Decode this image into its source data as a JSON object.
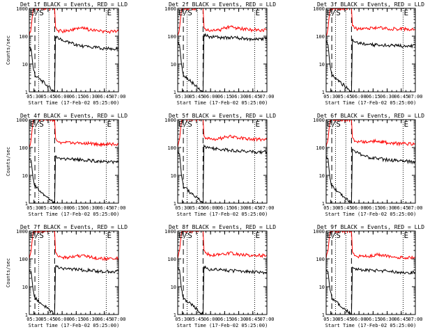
{
  "chart_data": [
    {
      "type": "line",
      "title": "Det 1f BLACK = Events, RED = LLD",
      "xlabel": "Start Time (17-Feb-02 05:25:00)",
      "ylabel": "Counts/sec",
      "yscale": "log",
      "ylim": [
        1,
        1000
      ],
      "xlim": [
        "05:25",
        "07:00"
      ],
      "x_ticks": [
        "05:30",
        "05:45",
        "06:00",
        "06:15",
        "06:30",
        "06:45",
        "07:00"
      ],
      "y_ticks": [
        "1",
        "10",
        "100",
        "1000"
      ],
      "markers": [
        "E/S",
        "E"
      ],
      "dashed_lines": [
        "05:31",
        "05:52"
      ],
      "dotted_lines": [
        "05:35",
        "05:46",
        "06:47"
      ],
      "series": [
        {
          "name": "LLD",
          "color": "#ff0000",
          "x": [
            "05:25",
            "05:27",
            "05:29",
            "05:30",
            "05:31",
            "05:52",
            "05:53",
            "05:55",
            "06:00",
            "06:10",
            "06:20",
            "06:30",
            "06:40",
            "06:50",
            "07:00"
          ],
          "y": [
            100,
            200,
            900,
            1000,
            1000,
            1000,
            200,
            160,
            150,
            160,
            200,
            170,
            150,
            145,
            150
          ]
        },
        {
          "name": "Events",
          "color": "#000000",
          "x": [
            "05:25",
            "05:27",
            "05:29",
            "05:31",
            "05:52",
            "05:53",
            "05:56",
            "06:00",
            "06:10",
            "06:20",
            "06:30",
            "06:40",
            "06:50",
            "07:00"
          ],
          "y": [
            40,
            35,
            8,
            4,
            1,
            100,
            80,
            75,
            55,
            45,
            40,
            38,
            35,
            35
          ]
        }
      ]
    },
    {
      "type": "line",
      "title": "Det 2f BLACK = Events, RED = LLD",
      "xlabel": "Start Time (17-Feb-02 05:25:00)",
      "ylabel": "",
      "yscale": "log",
      "ylim": [
        1,
        1000
      ],
      "xlim": [
        "05:25",
        "07:00"
      ],
      "x_ticks": [
        "05:30",
        "05:45",
        "06:00",
        "06:15",
        "06:30",
        "06:45",
        "07:00"
      ],
      "y_ticks": [
        "1",
        "10",
        "100",
        "1000"
      ],
      "markers": [
        "E/S",
        "E"
      ],
      "dashed_lines": [
        "05:31",
        "05:52"
      ],
      "dotted_lines": [
        "05:35",
        "05:46",
        "06:47"
      ],
      "series": [
        {
          "name": "LLD",
          "color": "#ff0000",
          "x": [
            "05:25",
            "05:27",
            "05:29",
            "05:30",
            "05:31",
            "05:52",
            "05:53",
            "05:56",
            "06:00",
            "06:10",
            "06:20",
            "06:30",
            "06:40",
            "06:50",
            "07:00"
          ],
          "y": [
            100,
            200,
            900,
            1000,
            1000,
            1000,
            220,
            170,
            160,
            170,
            220,
            190,
            170,
            165,
            170
          ]
        },
        {
          "name": "Events",
          "color": "#000000",
          "x": [
            "05:25",
            "05:27",
            "05:29",
            "05:31",
            "05:52",
            "05:53",
            "05:56",
            "06:00",
            "06:10",
            "06:20",
            "06:30",
            "06:40",
            "06:50",
            "07:00"
          ],
          "y": [
            60,
            50,
            10,
            4,
            1,
            120,
            100,
            95,
            90,
            90,
            85,
            80,
            80,
            80
          ]
        }
      ]
    },
    {
      "type": "line",
      "title": "Det 3f BLACK = Events, RED = LLD",
      "xlabel": "Start Time (17-Feb-02 05:25:00)",
      "ylabel": "",
      "yscale": "log",
      "ylim": [
        1,
        1000
      ],
      "xlim": [
        "05:25",
        "07:00"
      ],
      "x_ticks": [
        "05:30",
        "05:45",
        "06:00",
        "06:15",
        "06:30",
        "06:45",
        "07:00"
      ],
      "y_ticks": [
        "1",
        "10",
        "100",
        "1000"
      ],
      "markers": [
        "E/S",
        "E"
      ],
      "dashed_lines": [
        "05:31",
        "05:52"
      ],
      "dotted_lines": [
        "05:35",
        "05:46",
        "06:47"
      ],
      "series": [
        {
          "name": "LLD",
          "color": "#ff0000",
          "x": [
            "05:25",
            "05:27",
            "05:29",
            "05:30",
            "05:31",
            "05:52",
            "05:53",
            "05:56",
            "06:00",
            "06:10",
            "06:20",
            "06:30",
            "06:40",
            "06:50",
            "07:00"
          ],
          "y": [
            100,
            200,
            900,
            1000,
            1000,
            1000,
            240,
            190,
            180,
            190,
            200,
            190,
            180,
            180,
            180
          ]
        },
        {
          "name": "Events",
          "color": "#000000",
          "x": [
            "05:25",
            "05:27",
            "05:29",
            "05:31",
            "05:52",
            "05:53",
            "05:56",
            "06:00",
            "06:10",
            "06:20",
            "06:30",
            "06:40",
            "06:50",
            "07:00"
          ],
          "y": [
            60,
            50,
            10,
            4,
            1,
            80,
            60,
            55,
            50,
            48,
            46,
            45,
            44,
            45
          ]
        }
      ]
    },
    {
      "type": "line",
      "title": "Det 4f BLACK = Events, RED = LLD",
      "xlabel": "Start Time (17-Feb-02 05:25:00)",
      "ylabel": "Counts/sec",
      "yscale": "log",
      "ylim": [
        1,
        1000
      ],
      "xlim": [
        "05:25",
        "07:00"
      ],
      "x_ticks": [
        "05:30",
        "05:45",
        "06:00",
        "06:15",
        "06:30",
        "06:45",
        "07:00"
      ],
      "y_ticks": [
        "1",
        "10",
        "100",
        "1000"
      ],
      "markers": [
        "E/S",
        "E"
      ],
      "dashed_lines": [
        "05:31",
        "05:52"
      ],
      "dotted_lines": [
        "05:35",
        "05:46",
        "06:47"
      ],
      "series": [
        {
          "name": "LLD",
          "color": "#ff0000",
          "x": [
            "05:25",
            "05:27",
            "05:29",
            "05:30",
            "05:31",
            "05:52",
            "05:53",
            "05:56",
            "06:00",
            "06:10",
            "06:20",
            "06:30",
            "06:40",
            "06:50",
            "07:00"
          ],
          "y": [
            100,
            200,
            900,
            1000,
            1000,
            1000,
            220,
            160,
            150,
            145,
            150,
            140,
            130,
            130,
            130
          ]
        },
        {
          "name": "Events",
          "color": "#000000",
          "x": [
            "05:25",
            "05:27",
            "05:29",
            "05:31",
            "05:52",
            "05:53",
            "05:56",
            "06:00",
            "06:10",
            "06:20",
            "06:30",
            "06:40",
            "06:50",
            "07:00"
          ],
          "y": [
            40,
            35,
            8,
            4,
            1,
            50,
            42,
            40,
            38,
            36,
            34,
            32,
            30,
            30
          ]
        }
      ]
    },
    {
      "type": "line",
      "title": "Det 5f BLACK = Events, RED = LLD",
      "xlabel": "Start Time (17-Feb-02 05:25:00)",
      "ylabel": "",
      "yscale": "log",
      "ylim": [
        1,
        1000
      ],
      "xlim": [
        "05:25",
        "07:00"
      ],
      "x_ticks": [
        "05:30",
        "05:45",
        "06:00",
        "06:15",
        "06:30",
        "06:45",
        "07:00"
      ],
      "y_ticks": [
        "1",
        "10",
        "100",
        "1000"
      ],
      "markers": [
        "E/S",
        "E"
      ],
      "dashed_lines": [
        "05:31",
        "05:52"
      ],
      "dotted_lines": [
        "05:35",
        "05:46",
        "06:47"
      ],
      "series": [
        {
          "name": "LLD",
          "color": "#ff0000",
          "x": [
            "05:25",
            "05:27",
            "05:29",
            "05:30",
            "05:31",
            "05:52",
            "05:53",
            "05:56",
            "06:00",
            "06:10",
            "06:20",
            "06:30",
            "06:40",
            "06:50",
            "07:00"
          ],
          "y": [
            100,
            200,
            900,
            1000,
            1000,
            1000,
            260,
            210,
            200,
            210,
            250,
            220,
            200,
            195,
            200
          ]
        },
        {
          "name": "Events",
          "color": "#000000",
          "x": [
            "05:25",
            "05:27",
            "05:29",
            "05:31",
            "05:52",
            "05:53",
            "05:56",
            "06:00",
            "06:10",
            "06:20",
            "06:30",
            "06:40",
            "06:50",
            "07:00"
          ],
          "y": [
            80,
            60,
            10,
            4,
            1,
            120,
            100,
            95,
            85,
            80,
            75,
            70,
            68,
            70
          ]
        }
      ]
    },
    {
      "type": "line",
      "title": "Det 6f BLACK = Events, RED = LLD",
      "xlabel": "Start Time (17-Feb-02 05:25:00)",
      "ylabel": "",
      "yscale": "log",
      "ylim": [
        1,
        1000
      ],
      "xlim": [
        "05:25",
        "07:00"
      ],
      "x_ticks": [
        "05:30",
        "05:45",
        "06:00",
        "06:15",
        "06:30",
        "06:45",
        "07:00"
      ],
      "y_ticks": [
        "1",
        "10",
        "100",
        "1000"
      ],
      "markers": [
        "E/S",
        "E"
      ],
      "dashed_lines": [
        "05:31",
        "05:52"
      ],
      "dotted_lines": [
        "05:35",
        "05:46",
        "06:47"
      ],
      "series": [
        {
          "name": "LLD",
          "color": "#ff0000",
          "x": [
            "05:25",
            "05:27",
            "05:29",
            "05:30",
            "05:31",
            "05:52",
            "05:53",
            "05:56",
            "06:00",
            "06:10",
            "06:20",
            "06:30",
            "06:40",
            "06:50",
            "07:00"
          ],
          "y": [
            100,
            200,
            900,
            1000,
            1000,
            1000,
            230,
            170,
            160,
            160,
            170,
            150,
            140,
            135,
            130
          ]
        },
        {
          "name": "Events",
          "color": "#000000",
          "x": [
            "05:25",
            "05:27",
            "05:29",
            "05:31",
            "05:52",
            "05:53",
            "05:56",
            "06:00",
            "06:10",
            "06:20",
            "06:30",
            "06:40",
            "06:50",
            "07:00"
          ],
          "y": [
            50,
            40,
            8,
            4,
            1,
            90,
            70,
            60,
            45,
            40,
            36,
            34,
            32,
            30
          ]
        }
      ]
    },
    {
      "type": "line",
      "title": "Det 7f BLACK = Events, RED = LLD",
      "xlabel": "Start Time (17-Feb-02 05:25:00)",
      "ylabel": "Counts/sec",
      "yscale": "log",
      "ylim": [
        1,
        1000
      ],
      "xlim": [
        "05:25",
        "07:00"
      ],
      "x_ticks": [
        "05:30",
        "05:45",
        "06:00",
        "06:15",
        "06:30",
        "06:45",
        "07:00"
      ],
      "y_ticks": [
        "1",
        "10",
        "100",
        "1000"
      ],
      "markers": [
        "E/S",
        "E"
      ],
      "dashed_lines": [
        "05:31",
        "05:52"
      ],
      "dotted_lines": [
        "05:35",
        "05:46",
        "06:47"
      ],
      "series": [
        {
          "name": "LLD",
          "color": "#ff0000",
          "x": [
            "05:25",
            "05:27",
            "05:29",
            "05:30",
            "05:31",
            "05:52",
            "05:53",
            "05:56",
            "06:00",
            "06:10",
            "06:20",
            "06:30",
            "06:40",
            "06:50",
            "07:00"
          ],
          "y": [
            100,
            200,
            900,
            1000,
            1000,
            1000,
            170,
            120,
            110,
            115,
            130,
            115,
            105,
            100,
            105
          ]
        },
        {
          "name": "Events",
          "color": "#000000",
          "x": [
            "05:25",
            "05:27",
            "05:29",
            "05:31",
            "05:52",
            "05:53",
            "05:56",
            "06:00",
            "06:10",
            "06:20",
            "06:30",
            "06:40",
            "06:50",
            "07:00"
          ],
          "y": [
            40,
            35,
            8,
            4,
            1,
            55,
            48,
            45,
            42,
            40,
            38,
            36,
            35,
            35
          ]
        }
      ]
    },
    {
      "type": "line",
      "title": "Det 8f BLACK = Events, RED = LLD",
      "xlabel": "Start Time (17-Feb-02 05:25:00)",
      "ylabel": "",
      "yscale": "log",
      "ylim": [
        1,
        1000
      ],
      "xlim": [
        "05:25",
        "07:00"
      ],
      "x_ticks": [
        "05:30",
        "05:45",
        "06:00",
        "06:15",
        "06:30",
        "06:45",
        "07:00"
      ],
      "y_ticks": [
        "1",
        "10",
        "100",
        "1000"
      ],
      "markers": [
        "E/S",
        "E"
      ],
      "dashed_lines": [
        "05:31",
        "05:52"
      ],
      "dotted_lines": [
        "05:35",
        "05:46",
        "06:47"
      ],
      "series": [
        {
          "name": "LLD",
          "color": "#ff0000",
          "x": [
            "05:25",
            "05:27",
            "05:29",
            "05:30",
            "05:31",
            "05:52",
            "05:53",
            "05:56",
            "06:00",
            "06:10",
            "06:20",
            "06:30",
            "06:40",
            "06:50",
            "07:00"
          ],
          "y": [
            100,
            200,
            900,
            1000,
            1000,
            1000,
            200,
            150,
            140,
            140,
            160,
            145,
            135,
            130,
            135
          ]
        },
        {
          "name": "Events",
          "color": "#000000",
          "x": [
            "05:25",
            "05:27",
            "05:29",
            "05:31",
            "05:52",
            "05:53",
            "05:56",
            "06:00",
            "06:10",
            "06:20",
            "06:30",
            "06:40",
            "06:50",
            "07:00"
          ],
          "y": [
            50,
            40,
            8,
            4,
            1,
            55,
            45,
            42,
            40,
            38,
            36,
            34,
            33,
            32
          ]
        }
      ]
    },
    {
      "type": "line",
      "title": "Det 9f BLACK = Events, RED = LLD",
      "xlabel": "Start Time (17-Feb-02 05:25:00)",
      "ylabel": "",
      "yscale": "log",
      "ylim": [
        1,
        1000
      ],
      "xlim": [
        "05:25",
        "07:00"
      ],
      "x_ticks": [
        "05:30",
        "05:45",
        "06:00",
        "06:15",
        "06:30",
        "06:45",
        "07:00"
      ],
      "y_ticks": [
        "1",
        "10",
        "100",
        "1000"
      ],
      "markers": [
        "E/S",
        "E"
      ],
      "dashed_lines": [
        "05:31",
        "05:52"
      ],
      "dotted_lines": [
        "05:35",
        "05:46",
        "06:47"
      ],
      "series": [
        {
          "name": "LLD",
          "color": "#ff0000",
          "x": [
            "05:25",
            "05:27",
            "05:29",
            "05:30",
            "05:31",
            "05:52",
            "05:53",
            "05:56",
            "06:00",
            "06:10",
            "06:20",
            "06:30",
            "06:40",
            "06:50",
            "07:00"
          ],
          "y": [
            100,
            200,
            900,
            1000,
            1000,
            1000,
            180,
            130,
            120,
            125,
            140,
            125,
            115,
            110,
            115
          ]
        },
        {
          "name": "Events",
          "color": "#000000",
          "x": [
            "05:25",
            "05:27",
            "05:29",
            "05:31",
            "05:52",
            "05:53",
            "05:56",
            "06:00",
            "06:10",
            "06:20",
            "06:30",
            "06:40",
            "06:50",
            "07:00"
          ],
          "y": [
            40,
            35,
            8,
            4,
            1,
            50,
            45,
            42,
            40,
            38,
            36,
            34,
            33,
            32
          ]
        }
      ]
    }
  ]
}
